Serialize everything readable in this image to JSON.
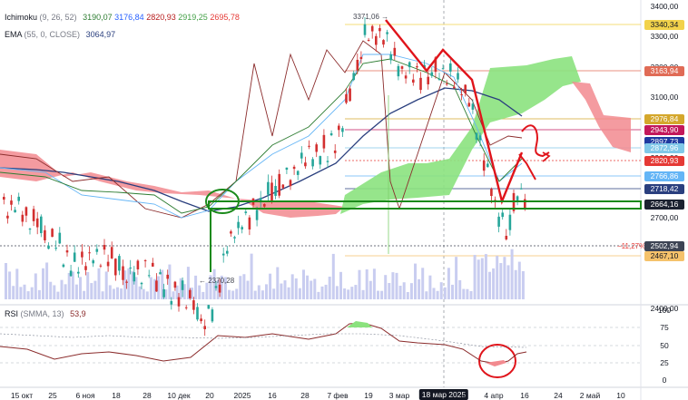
{
  "indicators": {
    "ichimoku": {
      "name": "Ichimoku",
      "params": "(9, 26, 52)",
      "values": [
        "3190,07",
        "3176,84",
        "2820,93",
        "2919,25",
        "2695,78"
      ],
      "colors": [
        "#2e7d32",
        "#2962ff",
        "#b71c1c",
        "#43a047",
        "#e53935"
      ]
    },
    "ema": {
      "name": "EMA",
      "params": "(55, 0, CLOSE)",
      "value": "3064,97",
      "color": "#2a3f7e"
    },
    "rsi": {
      "name": "RSI",
      "params": "(SMMA, 13)",
      "value": "53,9",
      "color": "#8b2c2c"
    }
  },
  "annotations": {
    "high": "3371,06",
    "low": "2370,28",
    "pct": "−11,27%"
  },
  "price_axis": {
    "ticks": [
      "3400,00",
      "3300,00",
      "3200,00",
      "3100,00",
      "2900,00",
      "2800,00",
      "2700,00",
      "2600,00",
      "2400,00"
    ],
    "labels": [
      {
        "text": "3340,34",
        "bg": "#f2d24b",
        "fg": "#131722"
      },
      {
        "text": "3163,94",
        "bg": "#e06b56",
        "fg": "#ffffff"
      },
      {
        "text": "2976,84",
        "bg": "#d4a72c",
        "fg": "#ffffff"
      },
      {
        "text": "2943,90",
        "bg": "#c2185b",
        "fg": "#ffffff"
      },
      {
        "text": "2897,73",
        "bg": "#1e3aa0",
        "fg": "#ffffff"
      },
      {
        "text": "2872,96",
        "bg": "#80c8e8",
        "fg": "#ffffff"
      },
      {
        "text": "2820,93",
        "bg": "#e53935",
        "fg": "#ffffff"
      },
      {
        "text": "2766,86",
        "bg": "#64b5f6",
        "fg": "#ffffff"
      },
      {
        "text": "2718,42",
        "bg": "#2a3f7e",
        "fg": "#ffffff"
      },
      {
        "text": "2664,16",
        "bg": "#1c2230",
        "fg": "#ffffff"
      },
      {
        "text": "2502,94",
        "bg": "#3d4454",
        "fg": "#ffffff"
      },
      {
        "text": "2467,10",
        "bg": "#f5c26b",
        "fg": "#131722"
      }
    ]
  },
  "rsi_axis": {
    "ticks": [
      "100",
      "75",
      "50",
      "25",
      "0"
    ]
  },
  "time_axis": {
    "ticks": [
      "15 окт",
      "25",
      "6 ноя",
      "18",
      "28",
      "10 дек",
      "20",
      "2025",
      "16",
      "28",
      "7 фев",
      "19",
      "3 мар",
      "18 мар 2025",
      "2",
      "4 апр",
      "16",
      "24",
      "2 май",
      "10"
    ],
    "selected": "18 мар 2025"
  },
  "colors": {
    "bull": "#26a69a",
    "bear": "#d32f2f",
    "cloud_up": "#8be27e",
    "cloud_dn": "#f28a8f",
    "tenkan": "#2e7d32",
    "kijun": "#64b5f6",
    "chikou": "#8b2c2c",
    "ema": "#2a3f7e",
    "volume": "#c9cdf0",
    "drawing_red": "#e0141b",
    "drawing_green": "#1b8a1b"
  }
}
